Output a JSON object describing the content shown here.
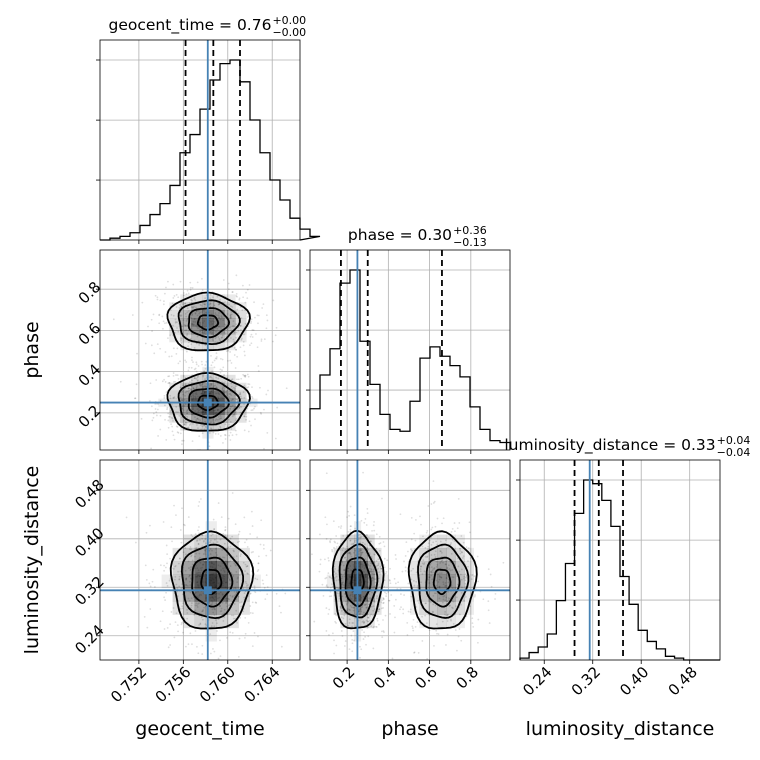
{
  "chart_data": {
    "type": "corner",
    "colors": {
      "truth": "#4682b4",
      "hist": "#000000",
      "grid": "#b0b0b0"
    },
    "parameters": [
      {
        "name": "geocent_time",
        "title": "geocent_time = 0.76",
        "title_sup": "+0.00",
        "title_sub": "−0.00",
        "range": [
          0.7485,
          0.7665
        ],
        "ticks": [
          0.752,
          0.756,
          0.76,
          0.764
        ],
        "tick_labels": [
          "0.752",
          "0.756",
          "0.760",
          "0.764"
        ],
        "truth": 0.7582,
        "quantiles": [
          0.7562,
          0.7587,
          0.7611
        ],
        "hist": {
          "edges_start": 0.7485,
          "bin_width": 0.0009,
          "counts": [
            0.0,
            0.01,
            0.02,
            0.04,
            0.08,
            0.14,
            0.2,
            0.3,
            0.48,
            0.58,
            0.72,
            0.88,
            0.97,
            0.99,
            0.87,
            0.66,
            0.48,
            0.33,
            0.22,
            0.12,
            0.06,
            0.02
          ]
        }
      },
      {
        "name": "phase",
        "title": "phase = 0.30",
        "title_sup": "+0.36",
        "title_sub": "−0.13",
        "range": [
          0.02,
          0.99
        ],
        "ticks": [
          0.2,
          0.4,
          0.6,
          0.8
        ],
        "tick_labels": [
          "0.2",
          "0.4",
          "0.6",
          "0.8"
        ],
        "truth": 0.25,
        "quantiles": [
          0.17,
          0.3,
          0.66
        ],
        "hist": {
          "edges_start": 0.02,
          "bin_width": 0.0485,
          "counts": [
            0.22,
            0.4,
            0.54,
            0.89,
            0.96,
            0.58,
            0.35,
            0.19,
            0.11,
            0.1,
            0.26,
            0.49,
            0.55,
            0.5,
            0.45,
            0.39,
            0.23,
            0.11,
            0.05,
            0.04
          ]
        }
      },
      {
        "name": "luminosity_distance",
        "title": "luminosity_distance = 0.33",
        "title_sup": "+0.04",
        "title_sub": "−0.04",
        "range": [
          0.2,
          0.53
        ],
        "ticks": [
          0.24,
          0.32,
          0.4,
          0.48
        ],
        "tick_labels": [
          "0.24",
          "0.32",
          "0.40",
          "0.48"
        ],
        "truth": 0.315,
        "quantiles": [
          0.29,
          0.33,
          0.37
        ],
        "hist": {
          "edges_start": 0.2,
          "bin_width": 0.015,
          "counts": [
            0.01,
            0.04,
            0.07,
            0.14,
            0.32,
            0.52,
            0.79,
            0.97,
            0.95,
            0.86,
            0.72,
            0.45,
            0.3,
            0.16,
            0.1,
            0.06,
            0.02,
            0.01,
            0.0,
            0.0,
            0.0,
            0.0
          ]
        }
      }
    ],
    "y_ticks_2d": {
      "phase": {
        "ticks": [
          0.2,
          0.4,
          0.6,
          0.8
        ],
        "tick_labels": [
          "0.2",
          "0.4",
          "0.6",
          "0.8"
        ]
      },
      "luminosity_distance": {
        "ticks": [
          0.24,
          0.32,
          0.4,
          0.48
        ],
        "tick_labels": [
          "0.24",
          "0.32",
          "0.40",
          "0.48"
        ]
      }
    },
    "axis_labels": {
      "x": [
        "geocent_time",
        "phase",
        "luminosity_distance"
      ],
      "y": [
        "phase",
        "luminosity_distance"
      ]
    },
    "grid": true,
    "density_2d": {
      "geocent_time_vs_phase": {
        "modes": [
          {
            "center": [
              0.7582,
              0.25
            ],
            "spread": [
              0.0018,
              0.07
            ],
            "weight": 1.0
          },
          {
            "center": [
              0.7582,
              0.64
            ],
            "spread": [
              0.0018,
              0.07
            ],
            "weight": 0.75
          }
        ]
      },
      "geocent_time_vs_luminosity_distance": {
        "modes": [
          {
            "center": [
              0.7585,
              0.33
            ],
            "spread": [
              0.0018,
              0.04
            ],
            "weight": 1.0
          }
        ]
      },
      "phase_vs_luminosity_distance": {
        "modes": [
          {
            "center": [
              0.25,
              0.33
            ],
            "spread": [
              0.06,
              0.04
            ],
            "weight": 1.0
          },
          {
            "center": [
              0.66,
              0.33
            ],
            "spread": [
              0.08,
              0.04
            ],
            "weight": 0.6
          }
        ]
      }
    }
  }
}
